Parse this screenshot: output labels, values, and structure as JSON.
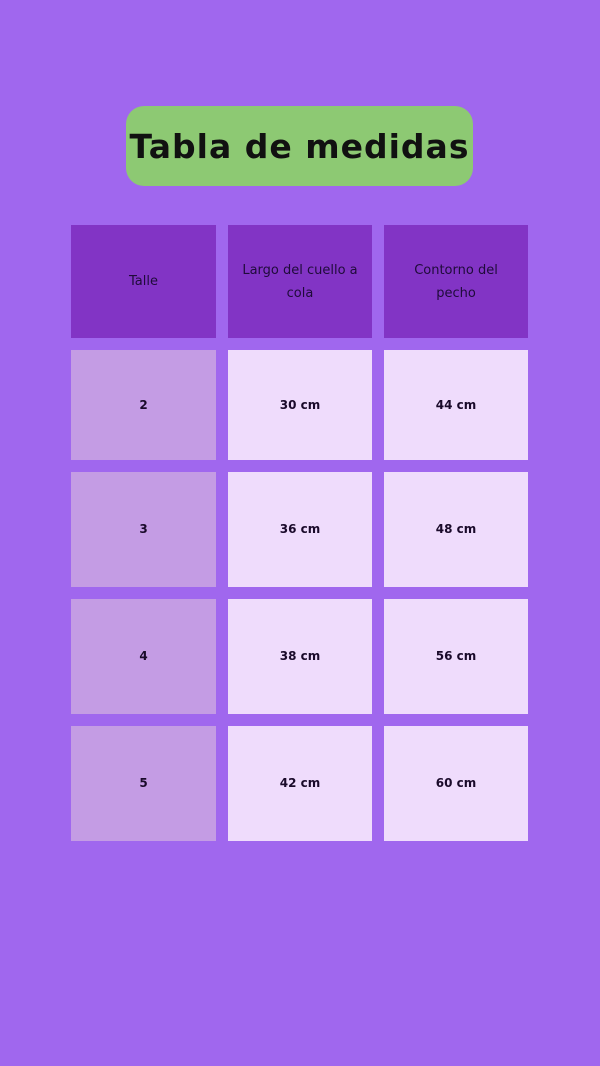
{
  "title": "Tabla de medidas",
  "table": {
    "headers": [
      "Talle",
      "Largo del cuello a cola",
      "Contorno del pecho"
    ],
    "rows": [
      [
        "2",
        "30 cm",
        "44 cm"
      ],
      [
        "3",
        "36 cm",
        "48 cm"
      ],
      [
        "4",
        "38 cm",
        "56 cm"
      ],
      [
        "5",
        "42 cm",
        "60 cm"
      ]
    ]
  },
  "colors": {
    "background": "#a067ee",
    "title_box": "#8dc973",
    "header": "#8234c5",
    "size_column": "#c49ce4",
    "value_cells": "#efdcfc"
  }
}
